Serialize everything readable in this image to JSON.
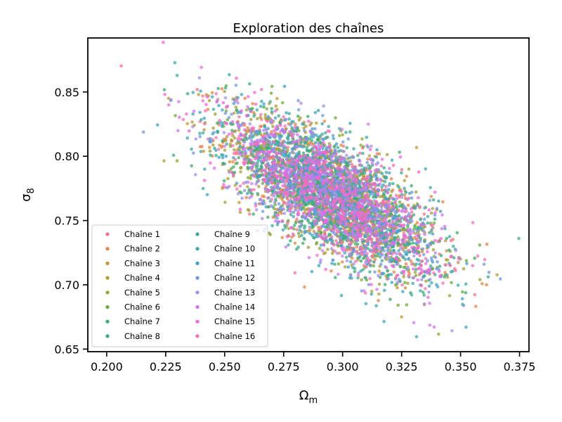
{
  "chart_data": {
    "type": "scatter",
    "title": "Exploration des chaînes",
    "xlabel": {
      "main": "Ω",
      "sub": "m"
    },
    "ylabel": {
      "main": "σ",
      "sub": "8"
    },
    "xlim": [
      0.192,
      0.379
    ],
    "ylim": [
      0.648,
      0.892
    ],
    "xticks": [
      {
        "value": 0.2,
        "label": "0.200"
      },
      {
        "value": 0.225,
        "label": "0.225"
      },
      {
        "value": 0.25,
        "label": "0.250"
      },
      {
        "value": 0.275,
        "label": "0.275"
      },
      {
        "value": 0.3,
        "label": "0.300"
      },
      {
        "value": 0.325,
        "label": "0.325"
      },
      {
        "value": 0.35,
        "label": "0.350"
      },
      {
        "value": 0.375,
        "label": "0.375"
      }
    ],
    "yticks": [
      {
        "value": 0.65,
        "label": "0.65"
      },
      {
        "value": 0.7,
        "label": "0.70"
      },
      {
        "value": 0.75,
        "label": "0.75"
      },
      {
        "value": 0.8,
        "label": "0.80"
      },
      {
        "value": 0.85,
        "label": "0.85"
      }
    ],
    "grid": false,
    "legend_position": "lower-left",
    "distribution": {
      "mean_x": 0.295,
      "mean_y": 0.77,
      "std_x": 0.022,
      "std_y": 0.031,
      "correlation": -0.72,
      "points_per_series": 330
    },
    "series": [
      {
        "name": "Chaîne 1",
        "color": "#f77189"
      },
      {
        "name": "Chaîne 2",
        "color": "#e8833b"
      },
      {
        "name": "Chaîne 3",
        "color": "#c69432"
      },
      {
        "name": "Chaîne 4",
        "color": "#ad9c31"
      },
      {
        "name": "Chaîne 5",
        "color": "#97a431"
      },
      {
        "name": "Chaîne 6",
        "color": "#6bac33"
      },
      {
        "name": "Chaîne 7",
        "color": "#34ae6a"
      },
      {
        "name": "Chaîne 8",
        "color": "#36ad8c"
      },
      {
        "name": "Chaîne 9",
        "color": "#38ab9f"
      },
      {
        "name": "Chaîne 10",
        "color": "#39a7b0"
      },
      {
        "name": "Chaîne 11",
        "color": "#3ca3c6"
      },
      {
        "name": "Chaîne 12",
        "color": "#6b99e4"
      },
      {
        "name": "Chaîne 13",
        "color": "#a48cf4"
      },
      {
        "name": "Chaîne 14",
        "color": "#d074f4"
      },
      {
        "name": "Chaîne 15",
        "color": "#f462e3"
      },
      {
        "name": "Chaîne 16",
        "color": "#f66db7"
      }
    ]
  }
}
